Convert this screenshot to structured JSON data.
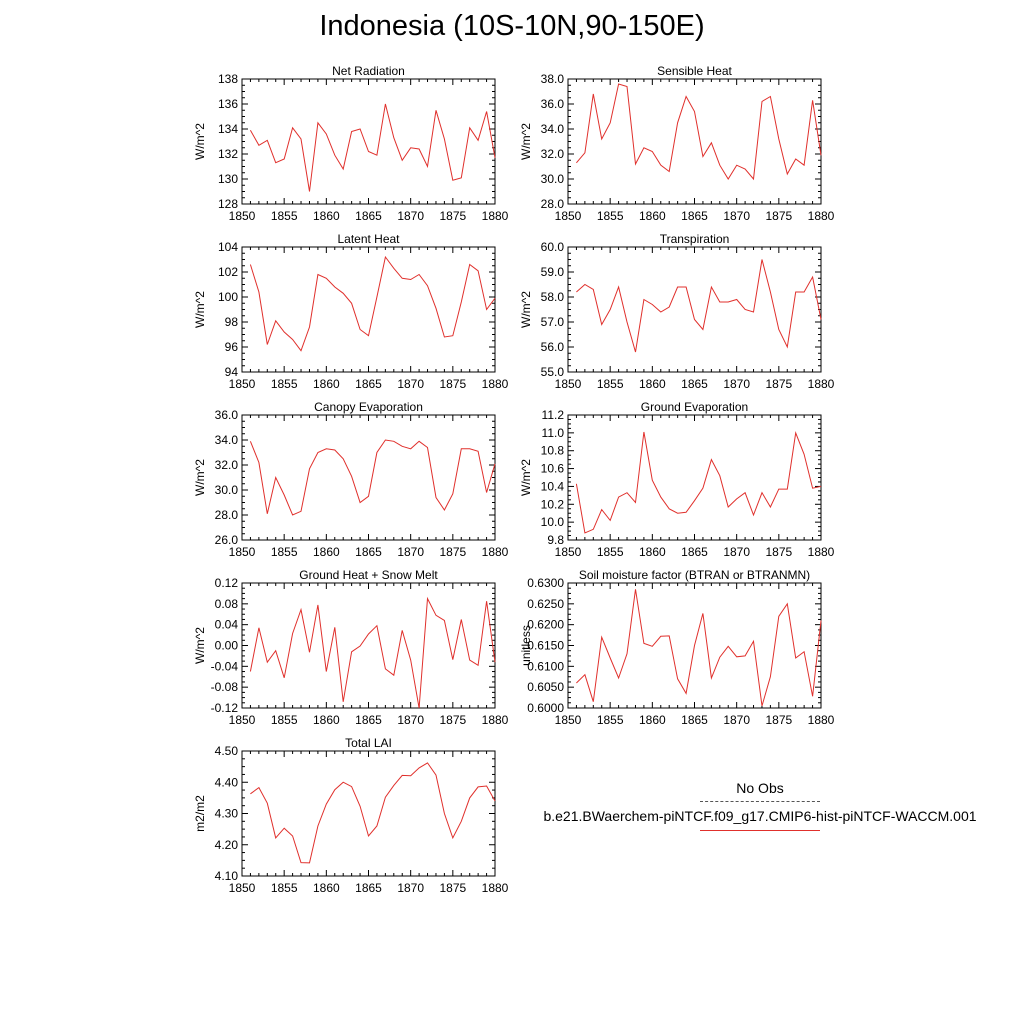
{
  "page": {
    "title": "Indonesia (10S-10N,90-150E)"
  },
  "legend": {
    "obs_label": "No Obs",
    "model_label": "b.e21.BWaerchem-piNTCF.f09_g17.CMIP6-hist-piNTCF-WACCM.001",
    "obs_color": "#555555",
    "model_color": "#e0302c"
  },
  "chart_data": [
    {
      "type": "line",
      "title": "Net Radiation",
      "ylabel": "W/m^2",
      "xlim": [
        1850,
        1880
      ],
      "ylim": [
        128,
        138
      ],
      "yticks": [
        "128",
        "130",
        "132",
        "134",
        "136",
        "138"
      ],
      "xticks": [
        "1850",
        "1855",
        "1860",
        "1865",
        "1870",
        "1875",
        "1880"
      ],
      "x": [
        1851,
        1852,
        1853,
        1854,
        1855,
        1856,
        1857,
        1858,
        1859,
        1860,
        1861,
        1862,
        1863,
        1864,
        1865,
        1866,
        1867,
        1868,
        1869,
        1870,
        1871,
        1872,
        1873,
        1874,
        1875,
        1876,
        1877,
        1878,
        1879,
        1880
      ],
      "series": [
        {
          "color": "#e0302c",
          "values": [
            133.9,
            132.7,
            133.1,
            131.3,
            131.6,
            134.1,
            133.2,
            129.0,
            134.5,
            133.6,
            131.9,
            130.8,
            133.8,
            134.0,
            132.2,
            131.9,
            136.0,
            133.3,
            131.5,
            132.5,
            132.4,
            131.0,
            135.5,
            133.2,
            129.9,
            130.1,
            134.1,
            133.1,
            135.4,
            131.7
          ]
        }
      ]
    },
    {
      "type": "line",
      "title": "Sensible Heat",
      "ylabel": "W/m^2",
      "xlim": [
        1850,
        1880
      ],
      "ylim": [
        28,
        38
      ],
      "yticks": [
        "28.0",
        "30.0",
        "32.0",
        "34.0",
        "36.0",
        "38.0"
      ],
      "xticks": [
        "1850",
        "1855",
        "1860",
        "1865",
        "1870",
        "1875",
        "1880"
      ],
      "x": [
        1851,
        1852,
        1853,
        1854,
        1855,
        1856,
        1857,
        1858,
        1859,
        1860,
        1861,
        1862,
        1863,
        1864,
        1865,
        1866,
        1867,
        1868,
        1869,
        1870,
        1871,
        1872,
        1873,
        1874,
        1875,
        1876,
        1877,
        1878,
        1879,
        1880
      ],
      "series": [
        {
          "color": "#e0302c",
          "values": [
            31.3,
            32.1,
            36.8,
            33.2,
            34.5,
            37.6,
            37.4,
            31.2,
            32.5,
            32.2,
            31.1,
            30.6,
            34.5,
            36.6,
            35.4,
            31.8,
            32.9,
            31.1,
            30.0,
            31.1,
            30.8,
            30.0,
            36.2,
            36.6,
            33.2,
            30.4,
            31.6,
            31.1,
            36.3,
            31.9
          ]
        }
      ]
    },
    {
      "type": "line",
      "title": "Latent Heat",
      "ylabel": "W/m^2",
      "xlim": [
        1850,
        1880
      ],
      "ylim": [
        94,
        104
      ],
      "yticks": [
        "94",
        "96",
        "98",
        "100",
        "102",
        "104"
      ],
      "xticks": [
        "1850",
        "1855",
        "1860",
        "1865",
        "1870",
        "1875",
        "1880"
      ],
      "x": [
        1851,
        1852,
        1853,
        1854,
        1855,
        1856,
        1857,
        1858,
        1859,
        1860,
        1861,
        1862,
        1863,
        1864,
        1865,
        1866,
        1867,
        1868,
        1869,
        1870,
        1871,
        1872,
        1873,
        1874,
        1875,
        1876,
        1877,
        1878,
        1879,
        1880
      ],
      "series": [
        {
          "color": "#e0302c",
          "values": [
            102.6,
            100.4,
            96.2,
            98.1,
            97.2,
            96.6,
            95.7,
            97.6,
            101.8,
            101.5,
            100.8,
            100.3,
            99.5,
            97.4,
            96.9,
            100.0,
            103.2,
            102.3,
            101.5,
            101.4,
            101.8,
            100.9,
            99.1,
            96.8,
            96.9,
            99.6,
            102.6,
            102.1,
            99.0,
            99.9
          ]
        }
      ]
    },
    {
      "type": "line",
      "title": "Transpiration",
      "ylabel": "W/m^2",
      "xlim": [
        1850,
        1880
      ],
      "ylim": [
        55,
        60
      ],
      "yticks": [
        "55.0",
        "56.0",
        "57.0",
        "58.0",
        "59.0",
        "60.0"
      ],
      "xticks": [
        "1850",
        "1855",
        "1860",
        "1865",
        "1870",
        "1875",
        "1880"
      ],
      "x": [
        1851,
        1852,
        1853,
        1854,
        1855,
        1856,
        1857,
        1858,
        1859,
        1860,
        1861,
        1862,
        1863,
        1864,
        1865,
        1866,
        1867,
        1868,
        1869,
        1870,
        1871,
        1872,
        1873,
        1874,
        1875,
        1876,
        1877,
        1878,
        1879,
        1880
      ],
      "series": [
        {
          "color": "#e0302c",
          "values": [
            58.2,
            58.5,
            58.3,
            56.9,
            57.5,
            58.4,
            57.0,
            55.8,
            57.9,
            57.7,
            57.4,
            57.6,
            58.4,
            58.4,
            57.1,
            56.7,
            58.4,
            57.8,
            57.8,
            57.9,
            57.5,
            57.4,
            59.5,
            58.2,
            56.7,
            56.0,
            58.2,
            58.2,
            58.8,
            57.1
          ]
        }
      ]
    },
    {
      "type": "line",
      "title": "Canopy Evaporation",
      "ylabel": "W/m^2",
      "xlim": [
        1850,
        1880
      ],
      "ylim": [
        26,
        36
      ],
      "yticks": [
        "26.0",
        "28.0",
        "30.0",
        "32.0",
        "34.0",
        "36.0"
      ],
      "xticks": [
        "1850",
        "1855",
        "1860",
        "1865",
        "1870",
        "1875",
        "1880"
      ],
      "x": [
        1851,
        1852,
        1853,
        1854,
        1855,
        1856,
        1857,
        1858,
        1859,
        1860,
        1861,
        1862,
        1863,
        1864,
        1865,
        1866,
        1867,
        1868,
        1869,
        1870,
        1871,
        1872,
        1873,
        1874,
        1875,
        1876,
        1877,
        1878,
        1879,
        1880
      ],
      "series": [
        {
          "color": "#e0302c",
          "values": [
            33.9,
            32.2,
            28.1,
            31.0,
            29.6,
            28.0,
            28.3,
            31.7,
            33.0,
            33.3,
            33.2,
            32.5,
            31.1,
            29.0,
            29.5,
            33.0,
            34.0,
            33.9,
            33.5,
            33.3,
            33.9,
            33.4,
            29.4,
            28.4,
            29.7,
            33.3,
            33.3,
            33.1,
            29.8,
            32.1
          ]
        }
      ]
    },
    {
      "type": "line",
      "title": "Ground Evaporation",
      "ylabel": "W/m^2",
      "xlim": [
        1850,
        1880
      ],
      "ylim": [
        9.8,
        11.2
      ],
      "yticks": [
        "9.8",
        "10.0",
        "10.2",
        "10.4",
        "10.6",
        "10.8",
        "11.0",
        "11.2"
      ],
      "xticks": [
        "1850",
        "1855",
        "1860",
        "1865",
        "1870",
        "1875",
        "1880"
      ],
      "x": [
        1851,
        1852,
        1853,
        1854,
        1855,
        1856,
        1857,
        1858,
        1859,
        1860,
        1861,
        1862,
        1863,
        1864,
        1865,
        1866,
        1867,
        1868,
        1869,
        1870,
        1871,
        1872,
        1873,
        1874,
        1875,
        1876,
        1877,
        1878,
        1879,
        1880
      ],
      "series": [
        {
          "color": "#e0302c",
          "values": [
            10.43,
            9.88,
            9.92,
            10.14,
            10.02,
            10.28,
            10.33,
            10.22,
            11.01,
            10.47,
            10.28,
            10.15,
            10.1,
            10.11,
            10.24,
            10.38,
            10.7,
            10.52,
            10.17,
            10.26,
            10.33,
            10.08,
            10.33,
            10.17,
            10.37,
            10.37,
            11.0,
            10.76,
            10.38,
            10.4
          ]
        }
      ]
    },
    {
      "type": "line",
      "title": "Ground Heat + Snow Melt",
      "ylabel": "W/m^2",
      "xlim": [
        1850,
        1880
      ],
      "ylim": [
        -0.12,
        0.12
      ],
      "yticks": [
        "-0.12",
        "-0.08",
        "-0.04",
        "0.00",
        "0.04",
        "0.08",
        "0.12"
      ],
      "xticks": [
        "1850",
        "1855",
        "1860",
        "1865",
        "1870",
        "1875",
        "1880"
      ],
      "x": [
        1851,
        1852,
        1853,
        1854,
        1855,
        1856,
        1857,
        1858,
        1859,
        1860,
        1861,
        1862,
        1863,
        1864,
        1865,
        1866,
        1867,
        1868,
        1869,
        1870,
        1871,
        1872,
        1873,
        1874,
        1875,
        1876,
        1877,
        1878,
        1879,
        1880
      ],
      "series": [
        {
          "color": "#e0302c",
          "values": [
            -0.05,
            0.034,
            -0.032,
            -0.01,
            -0.062,
            0.023,
            0.069,
            -0.013,
            0.078,
            -0.05,
            0.035,
            -0.108,
            -0.012,
            -0.001,
            0.022,
            0.038,
            -0.045,
            -0.057,
            0.029,
            -0.028,
            -0.12,
            0.09,
            0.058,
            0.048,
            -0.027,
            0.05,
            -0.028,
            -0.038,
            0.085,
            -0.032
          ]
        }
      ]
    },
    {
      "type": "line",
      "title": "Soil moisture factor (BTRAN or BTRANMN)",
      "ylabel": "unitless",
      "xlim": [
        1850,
        1880
      ],
      "ylim": [
        0.6,
        0.63
      ],
      "yticks": [
        "0.6000",
        "0.6050",
        "0.6100",
        "0.6150",
        "0.6200",
        "0.6250",
        "0.6300"
      ],
      "xticks": [
        "1850",
        "1855",
        "1860",
        "1865",
        "1870",
        "1875",
        "1880"
      ],
      "x": [
        1851,
        1852,
        1853,
        1854,
        1855,
        1856,
        1857,
        1858,
        1859,
        1860,
        1861,
        1862,
        1863,
        1864,
        1865,
        1866,
        1867,
        1868,
        1869,
        1870,
        1871,
        1872,
        1873,
        1874,
        1875,
        1876,
        1877,
        1878,
        1879,
        1880
      ],
      "series": [
        {
          "color": "#e0302c",
          "values": [
            0.606,
            0.608,
            0.6015,
            0.617,
            0.612,
            0.6072,
            0.613,
            0.6285,
            0.6155,
            0.6148,
            0.6172,
            0.6173,
            0.607,
            0.6035,
            0.615,
            0.6227,
            0.6072,
            0.6122,
            0.6148,
            0.6123,
            0.6125,
            0.616,
            0.6005,
            0.6075,
            0.622,
            0.625,
            0.612,
            0.6135,
            0.6028,
            0.621
          ]
        }
      ]
    },
    {
      "type": "line",
      "title": "Total LAI",
      "ylabel": "m2/m2",
      "xlim": [
        1850,
        1880
      ],
      "ylim": [
        4.1,
        4.5
      ],
      "yticks": [
        "4.10",
        "4.20",
        "4.30",
        "4.40",
        "4.50"
      ],
      "xticks": [
        "1850",
        "1855",
        "1860",
        "1865",
        "1870",
        "1875",
        "1880"
      ],
      "x": [
        1851,
        1852,
        1853,
        1854,
        1855,
        1856,
        1857,
        1858,
        1859,
        1860,
        1861,
        1862,
        1863,
        1864,
        1865,
        1866,
        1867,
        1868,
        1869,
        1870,
        1871,
        1872,
        1873,
        1874,
        1875,
        1876,
        1877,
        1878,
        1879,
        1880
      ],
      "series": [
        {
          "color": "#e0302c",
          "values": [
            4.363,
            4.383,
            4.333,
            4.222,
            4.253,
            4.228,
            4.143,
            4.142,
            4.26,
            4.33,
            4.376,
            4.4,
            4.386,
            4.323,
            4.228,
            4.26,
            4.352,
            4.39,
            4.422,
            4.421,
            4.446,
            4.462,
            4.423,
            4.3,
            4.222,
            4.275,
            4.35,
            4.385,
            4.388,
            4.34
          ]
        }
      ]
    }
  ]
}
